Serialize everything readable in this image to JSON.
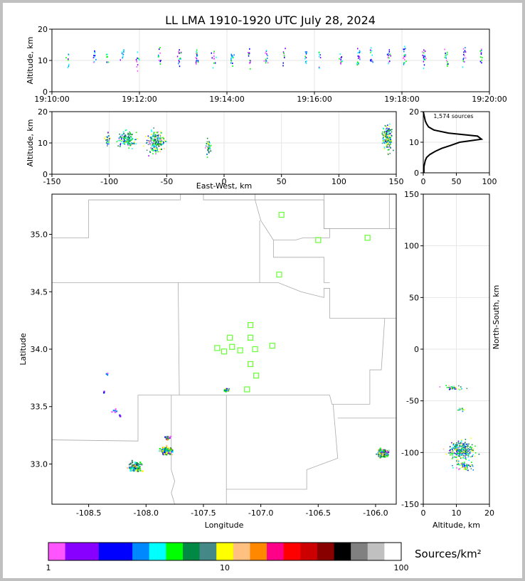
{
  "title": "LL LMA 1910-1920 UTC July 28, 2024",
  "colors": {
    "background": "#c0c0c0",
    "page": "#ffffff",
    "source_point_palette": [
      "#ff55ff",
      "#8800ff",
      "#0000ff",
      "#0088ff",
      "#00ffff",
      "#00ff00",
      "#008844",
      "#448888",
      "#ffff00",
      "#ffc080",
      "#ff8800",
      "#ff0088",
      "#ff0000",
      "#cc0000",
      "#880000",
      "#000000",
      "#808080",
      "#c0c0c0",
      "#ffffff"
    ],
    "station_marker": "#66ff33",
    "county_lines": "#aaaaaa"
  },
  "chart_data": [
    {
      "panel": "time-height",
      "type": "scatter",
      "title": "LL LMA 1910-1920 UTC July 28, 2024",
      "ylabel": "Altitude, km",
      "xlabel": "",
      "xticks": [
        "19:10:00",
        "19:12:00",
        "19:14:00",
        "19:16:00",
        "19:18:00",
        "19:20:00"
      ],
      "xlim_minutes": [
        0,
        10
      ],
      "ylim": [
        0,
        20
      ],
      "yticks": [
        0,
        10,
        20
      ],
      "grid": true,
      "clusters": [
        {
          "t": 0.35,
          "z": 11,
          "n": 8
        },
        {
          "t": 0.95,
          "z": 12,
          "n": 10
        },
        {
          "t": 1.25,
          "z": 12,
          "n": 6
        },
        {
          "t": 1.6,
          "z": 12,
          "n": 10
        },
        {
          "t": 1.95,
          "z": 10,
          "n": 10
        },
        {
          "t": 2.45,
          "z": 11,
          "n": 10
        },
        {
          "t": 2.9,
          "z": 11,
          "n": 14
        },
        {
          "t": 3.3,
          "z": 11,
          "n": 16
        },
        {
          "t": 3.7,
          "z": 11,
          "n": 14
        },
        {
          "t": 4.1,
          "z": 11,
          "n": 16
        },
        {
          "t": 4.5,
          "z": 11,
          "n": 12
        },
        {
          "t": 4.9,
          "z": 11,
          "n": 12
        },
        {
          "t": 5.3,
          "z": 11,
          "n": 8
        },
        {
          "t": 5.8,
          "z": 11,
          "n": 10
        },
        {
          "t": 6.1,
          "z": 11,
          "n": 8
        },
        {
          "t": 6.6,
          "z": 11,
          "n": 12
        },
        {
          "t": 7.0,
          "z": 11,
          "n": 16
        },
        {
          "t": 7.3,
          "z": 11,
          "n": 12
        },
        {
          "t": 7.7,
          "z": 11,
          "n": 14
        },
        {
          "t": 8.05,
          "z": 11,
          "n": 18
        },
        {
          "t": 8.5,
          "z": 11,
          "n": 16
        },
        {
          "t": 9.0,
          "z": 11,
          "n": 14
        },
        {
          "t": 9.4,
          "z": 11,
          "n": 14
        },
        {
          "t": 9.8,
          "z": 11,
          "n": 10
        }
      ]
    },
    {
      "panel": "east-west-altitude",
      "type": "scatter",
      "ylabel": "Altitude, km",
      "xlabel": "East-West, km",
      "xlim": [
        -150,
        150
      ],
      "xticks": [
        -150,
        -100,
        -50,
        0,
        50,
        100,
        150
      ],
      "ylim": [
        0,
        20
      ],
      "yticks": [
        0,
        10,
        20
      ],
      "grid": true,
      "clusters": [
        {
          "x": -102,
          "z": 11,
          "sx": 2,
          "sz": 1.5,
          "n": 30
        },
        {
          "x": -85,
          "z": 11.5,
          "sx": 5,
          "sz": 1.8,
          "n": 140
        },
        {
          "x": -60,
          "z": 10.5,
          "sx": 5,
          "sz": 2.5,
          "n": 200
        },
        {
          "x": -14,
          "z": 8.5,
          "sx": 1.5,
          "sz": 1.6,
          "n": 50
        },
        {
          "x": 142,
          "z": 12,
          "sx": 3,
          "sz": 3,
          "n": 170
        }
      ]
    },
    {
      "panel": "altitude-histogram",
      "type": "line",
      "label": "1,574 sources",
      "xlim": [
        0,
        100
      ],
      "xticks": [
        0,
        50,
        100
      ],
      "ylim": [
        0,
        20
      ],
      "yticks": [
        0,
        10,
        20
      ],
      "grid": true,
      "altitude_km": [
        0,
        2,
        4,
        5,
        6,
        7,
        8,
        9,
        10,
        11,
        12,
        13,
        14,
        15,
        16,
        17,
        18,
        19,
        20
      ],
      "count": [
        1,
        1,
        3,
        5,
        10,
        18,
        28,
        42,
        55,
        88,
        82,
        38,
        16,
        8,
        5,
        3,
        2,
        1,
        0
      ]
    },
    {
      "panel": "plan-view",
      "type": "scatter",
      "xlabel": "Longitude",
      "ylabel": "Latitude",
      "xlim": [
        -108.82,
        -105.82
      ],
      "ylim": [
        32.65,
        35.35
      ],
      "xticks": [
        -108.5,
        -108.0,
        -107.5,
        -107.0,
        -106.5,
        -106.0
      ],
      "yticks": [
        33.0,
        33.5,
        34.0,
        34.5,
        35.0
      ],
      "grid": true,
      "stations": [
        {
          "lon": -106.82,
          "lat": 35.17
        },
        {
          "lon": -106.5,
          "lat": 34.95
        },
        {
          "lon": -106.07,
          "lat": 34.97
        },
        {
          "lon": -106.84,
          "lat": 34.65
        },
        {
          "lon": -107.09,
          "lat": 34.21
        },
        {
          "lon": -107.27,
          "lat": 34.1
        },
        {
          "lon": -107.09,
          "lat": 34.1
        },
        {
          "lon": -107.38,
          "lat": 34.01
        },
        {
          "lon": -107.25,
          "lat": 34.02
        },
        {
          "lon": -107.32,
          "lat": 33.98
        },
        {
          "lon": -107.18,
          "lat": 33.99
        },
        {
          "lon": -107.05,
          "lat": 34.0
        },
        {
          "lon": -106.9,
          "lat": 34.03
        },
        {
          "lon": -107.09,
          "lat": 33.87
        },
        {
          "lon": -107.04,
          "lat": 33.77
        },
        {
          "lon": -107.12,
          "lat": 33.65
        }
      ],
      "clusters": [
        {
          "lon": -108.35,
          "lat": 33.79,
          "s": 0.01,
          "n": 3
        },
        {
          "lon": -108.37,
          "lat": 33.63,
          "s": 0.01,
          "n": 3
        },
        {
          "lon": -108.28,
          "lat": 33.47,
          "s": 0.015,
          "n": 8
        },
        {
          "lon": -108.23,
          "lat": 33.42,
          "s": 0.01,
          "n": 5
        },
        {
          "lon": -108.1,
          "lat": 32.98,
          "s": 0.04,
          "n": 110
        },
        {
          "lon": -107.83,
          "lat": 33.12,
          "s": 0.035,
          "n": 150
        },
        {
          "lon": -107.82,
          "lat": 33.23,
          "s": 0.02,
          "n": 20
        },
        {
          "lon": -107.3,
          "lat": 33.65,
          "s": 0.015,
          "n": 40
        },
        {
          "lon": -105.94,
          "lat": 33.1,
          "s": 0.035,
          "n": 120
        }
      ]
    },
    {
      "panel": "altitude-north-south",
      "type": "scatter",
      "xlabel": "Altitude, km",
      "ylabel": "North-South, km",
      "xlim": [
        0,
        20
      ],
      "xticks": [
        0,
        10,
        20
      ],
      "ylim": [
        -150,
        150
      ],
      "yticks": [
        -150,
        -100,
        -50,
        0,
        50,
        100,
        150
      ],
      "grid": true,
      "clusters": [
        {
          "z": 9,
          "y": -37,
          "sz": 2.5,
          "sy": 1.5,
          "n": 40
        },
        {
          "z": 11,
          "y": -58,
          "sz": 1.5,
          "sy": 1,
          "n": 12
        },
        {
          "z": 11.5,
          "y": -97,
          "sz": 2.5,
          "sy": 6,
          "n": 300
        },
        {
          "z": 12,
          "y": -112,
          "sz": 2,
          "sy": 3,
          "n": 60
        }
      ]
    },
    {
      "panel": "colorbar",
      "type": "heatmap",
      "label": "Sources/km²",
      "scale": "log",
      "range": [
        1,
        100
      ],
      "tick_labels": [
        "1",
        "10",
        "100"
      ],
      "colors": [
        "#ff55ff",
        "#8800ff",
        "#8800ff",
        "#0000ff",
        "#0000ff",
        "#0088ff",
        "#00ffff",
        "#00ff00",
        "#008844",
        "#448888",
        "#ffff00",
        "#ffc080",
        "#ff8800",
        "#ff0088",
        "#ff0000",
        "#cc0000",
        "#880000",
        "#000000",
        "#808080",
        "#c0c0c0",
        "#ffffff"
      ]
    }
  ]
}
